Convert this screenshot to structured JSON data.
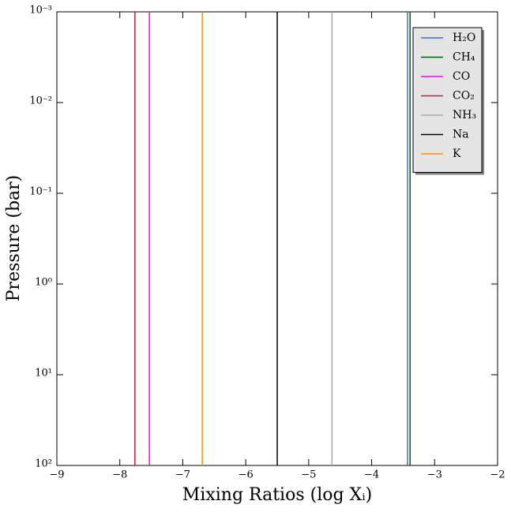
{
  "chart_data": {
    "type": "line",
    "xlabel": "Mixing Ratios (log Xᵢ)",
    "ylabel": "Pressure (bar)",
    "y": [
      0.001,
      100
    ],
    "series": [
      {
        "name": "H₂O",
        "color": "#4169e1",
        "values": [
          -3.43,
          -3.43
        ]
      },
      {
        "name": "CH₄",
        "color": "#006400",
        "values": [
          -3.39,
          -3.39
        ]
      },
      {
        "name": "CO",
        "color": "#ff00ff",
        "values": [
          -7.53,
          -7.53
        ]
      },
      {
        "name": "CO₂",
        "color": "#dc143c",
        "values": [
          -7.76,
          -7.76
        ]
      },
      {
        "name": "NH₃",
        "color": "#a9a9a9",
        "values": [
          -4.63,
          -4.63
        ]
      },
      {
        "name": "Na",
        "color": "#000000",
        "values": [
          -5.5,
          -5.5
        ]
      },
      {
        "name": "K",
        "color": "#ff8c00",
        "values": [
          -6.69,
          -6.69
        ]
      }
    ],
    "xlim": [
      -9,
      -2
    ],
    "xticks": [
      {
        "value": -9,
        "label": "−9"
      },
      {
        "value": -8,
        "label": "−8"
      },
      {
        "value": -7,
        "label": "−7"
      },
      {
        "value": -6,
        "label": "−6"
      },
      {
        "value": -5,
        "label": "−5"
      },
      {
        "value": -4,
        "label": "−4"
      },
      {
        "value": -3,
        "label": "−3"
      },
      {
        "value": -2,
        "label": "−2"
      }
    ],
    "ylim": [
      0.001,
      100
    ],
    "y_log": true,
    "y_inverted": true,
    "yticks": [
      {
        "value": 0.001,
        "label": "10⁻³"
      },
      {
        "value": 0.01,
        "label": "10⁻²"
      },
      {
        "value": 0.1,
        "label": "10⁻¹"
      },
      {
        "value": 1,
        "label": "10⁰"
      },
      {
        "value": 10,
        "label": "10¹"
      },
      {
        "value": 100,
        "label": "10²"
      }
    ],
    "legend": "upper right"
  }
}
